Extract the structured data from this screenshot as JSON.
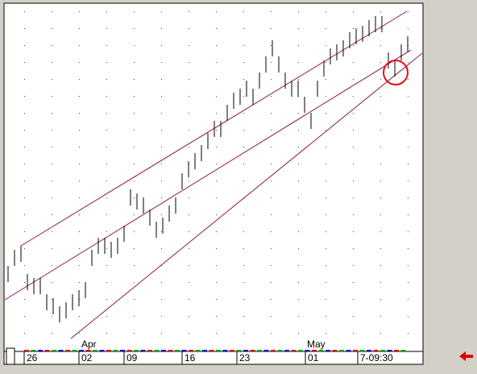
{
  "chart_data": {
    "type": "range-bar",
    "x_labels": [
      "26",
      "02",
      "09",
      "16",
      "23",
      "01",
      "7-09:30"
    ],
    "month_labels": [
      "Apr",
      "May"
    ],
    "ylim": [
      0,
      430
    ],
    "series": [
      {
        "name": "high",
        "values": [
          106,
          126,
          131,
          96,
          91,
          91,
          71,
          66,
          56,
          61,
          71,
          76,
          86,
          126,
          141,
          141,
          136,
          141,
          156,
          201,
          196,
          191,
          176,
          161,
          166,
          181,
          191,
          221,
          236,
          246,
          256,
          271,
          286,
          286,
          306,
          321,
          326,
          336,
          326,
          346,
          366,
          386,
          366,
          346,
          336,
          336,
          316,
          296,
          336,
          361,
          376,
          381,
          386,
          396,
          401,
          404,
          411,
          416,
          416,
          371,
          361,
          381,
          391
        ]
      },
      {
        "name": "low",
        "values": [
          86,
          106,
          111,
          76,
          71,
          71,
          51,
          46,
          36,
          41,
          51,
          56,
          66,
          106,
          121,
          121,
          116,
          121,
          136,
          181,
          176,
          171,
          156,
          141,
          146,
          161,
          171,
          201,
          216,
          226,
          236,
          251,
          266,
          266,
          286,
          301,
          306,
          316,
          306,
          326,
          346,
          366,
          346,
          326,
          316,
          316,
          296,
          276,
          316,
          341,
          356,
          361,
          366,
          376,
          381,
          384,
          391,
          396,
          396,
          351,
          341,
          361,
          371
        ]
      }
    ],
    "color": "#000000"
  }
}
